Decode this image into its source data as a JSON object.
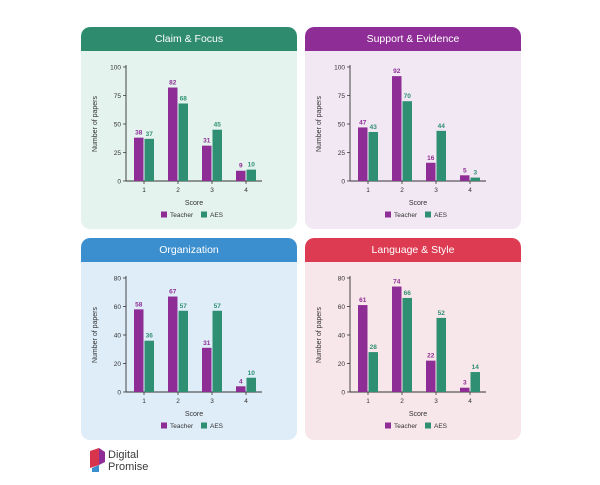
{
  "chart_data": [
    {
      "type": "bar",
      "title": "Claim & Focus",
      "xlabel": "Score",
      "ylabel": "Number of papers",
      "categories": [
        "1",
        "2",
        "3",
        "4"
      ],
      "ylim": [
        0,
        100
      ],
      "yticks": [
        0,
        25,
        50,
        75,
        100
      ],
      "series": [
        {
          "name": "Teacher",
          "values": [
            38,
            82,
            31,
            9
          ]
        },
        {
          "name": "AES",
          "values": [
            37,
            68,
            45,
            10
          ]
        }
      ],
      "header_color": "#2e8b6e",
      "background_color": "#e4f3ee"
    },
    {
      "type": "bar",
      "title": "Support & Evidence",
      "xlabel": "Score",
      "ylabel": "Number of papers",
      "categories": [
        "1",
        "2",
        "3",
        "4"
      ],
      "ylim": [
        0,
        100
      ],
      "yticks": [
        0,
        25,
        50,
        75,
        100
      ],
      "series": [
        {
          "name": "Teacher",
          "values": [
            47,
            92,
            16,
            5
          ]
        },
        {
          "name": "AES",
          "values": [
            43,
            70,
            44,
            3
          ]
        }
      ],
      "header_color": "#8e2d95",
      "background_color": "#f2e8f4"
    },
    {
      "type": "bar",
      "title": "Organization",
      "xlabel": "Score",
      "ylabel": "Number of papers",
      "categories": [
        "1",
        "2",
        "3",
        "4"
      ],
      "ylim": [
        0,
        80
      ],
      "yticks": [
        0,
        20,
        40,
        60,
        80
      ],
      "series": [
        {
          "name": "Teacher",
          "values": [
            58,
            67,
            31,
            4
          ]
        },
        {
          "name": "AES",
          "values": [
            36,
            57,
            57,
            10
          ]
        }
      ],
      "header_color": "#3c8fcf",
      "background_color": "#dfedf8"
    },
    {
      "type": "bar",
      "title": "Language & Style",
      "xlabel": "Score",
      "ylabel": "Number of papers",
      "categories": [
        "1",
        "2",
        "3",
        "4"
      ],
      "ylim": [
        0,
        80
      ],
      "yticks": [
        0,
        20,
        40,
        60,
        80
      ],
      "series": [
        {
          "name": "Teacher",
          "values": [
            61,
            74,
            22,
            3
          ]
        },
        {
          "name": "AES",
          "values": [
            28,
            66,
            52,
            14
          ]
        }
      ],
      "header_color": "#dc3b52",
      "background_color": "#f8e7ea"
    }
  ],
  "colors": {
    "teacher": "#8e2d95",
    "aes": "#2f8f73",
    "axis": "#333333",
    "text": "#333333"
  },
  "logo": {
    "text_line1": "Digital",
    "text_line2": "Promise",
    "icon": "digital-promise-logo-icon"
  }
}
